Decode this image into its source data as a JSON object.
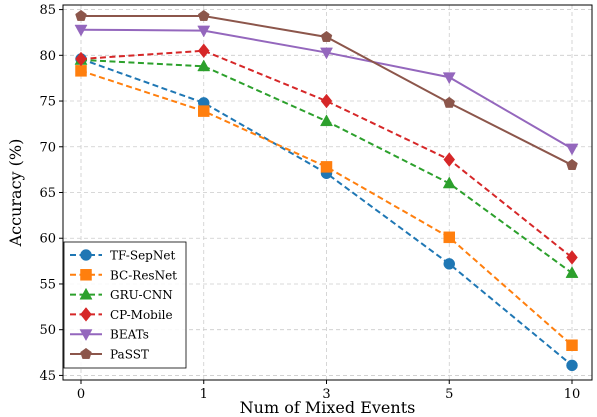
{
  "chart_data": {
    "type": "line",
    "title": "",
    "xlabel": "Num of Mixed Events",
    "ylabel": "Accuracy (%)",
    "categories": [
      "0",
      "1",
      "3",
      "5",
      "10"
    ],
    "ylim": [
      44.5,
      85.5
    ],
    "yticks": [
      45,
      50,
      55,
      60,
      65,
      70,
      75,
      80,
      85
    ],
    "grid": true,
    "legend_position": "lower-left",
    "series": [
      {
        "name": "TF-SepNet",
        "color": "#1f77b4",
        "marker": "circle",
        "dashed": true,
        "values": [
          79.6,
          74.8,
          67.1,
          57.2,
          46.1
        ]
      },
      {
        "name": "BC-ResNet",
        "color": "#ff7f0e",
        "marker": "square",
        "dashed": true,
        "values": [
          78.3,
          73.9,
          67.8,
          60.1,
          48.3
        ]
      },
      {
        "name": "GRU-CNN",
        "color": "#2ca02c",
        "marker": "triangle-up",
        "dashed": true,
        "values": [
          79.5,
          78.8,
          72.8,
          66.0,
          56.2
        ]
      },
      {
        "name": "CP-Mobile",
        "color": "#d62728",
        "marker": "diamond",
        "dashed": true,
        "values": [
          79.6,
          80.5,
          75.0,
          68.6,
          57.9
        ]
      },
      {
        "name": "BEATs",
        "color": "#9467bd",
        "marker": "triangle-down",
        "dashed": false,
        "values": [
          82.8,
          82.7,
          80.3,
          77.6,
          69.8
        ]
      },
      {
        "name": "PaSST",
        "color": "#8c564b",
        "marker": "pentagon",
        "dashed": false,
        "values": [
          84.3,
          84.3,
          82.0,
          74.8,
          68.0
        ]
      }
    ]
  }
}
